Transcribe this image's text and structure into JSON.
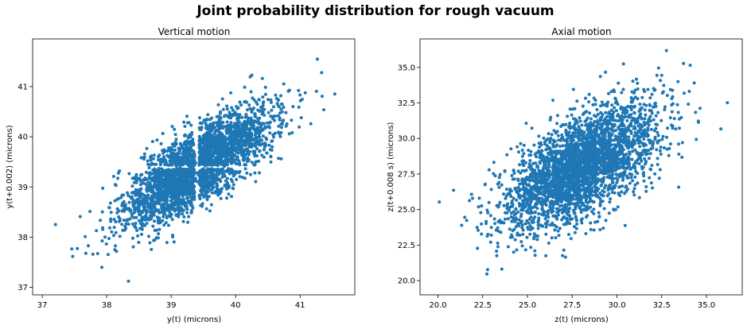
{
  "figure": {
    "suptitle": "Joint probability distribution for rough vacuum"
  },
  "chart_data": [
    {
      "type": "scatter",
      "title": "Vertical motion",
      "xlabel": "y(t) (microns)",
      "ylabel": "y(t+0.002) (microns)",
      "xlim": [
        36.85,
        41.85
      ],
      "ylim": [
        36.85,
        41.95
      ],
      "xticks": [
        37,
        38,
        39,
        40,
        41
      ],
      "yticks": [
        37,
        38,
        39,
        40,
        41
      ],
      "color": "#1f77b4",
      "point_cloud": {
        "approx_points": 3000,
        "center": [
          39.4,
          39.4
        ],
        "spread_along_diagonal": 0.75,
        "spread_across_diagonal": 0.28,
        "gap_near": 39.4,
        "x_range": [
          37.0,
          41.75
        ],
        "y_range": [
          37.0,
          41.75
        ]
      },
      "grid": false
    },
    {
      "type": "scatter",
      "title": "Axial motion",
      "xlabel": "z(t) (microns)",
      "ylabel": "z(t+0.008 s) (microns)",
      "xlim": [
        19.0,
        37.0
      ],
      "ylim": [
        19.0,
        37.0
      ],
      "xticks": [
        20.0,
        22.5,
        25.0,
        27.5,
        30.0,
        32.5,
        35.0
      ],
      "yticks": [
        20.0,
        22.5,
        25.0,
        27.5,
        30.0,
        32.5,
        35.0
      ],
      "color": "#1f77b4",
      "point_cloud": {
        "approx_points": 3000,
        "center": [
          28.0,
          28.0
        ],
        "spread_along_diagonal": 2.8,
        "spread_across_diagonal": 1.35,
        "x_range": [
          19.7,
          36.3
        ],
        "y_range": [
          19.7,
          36.3
        ]
      },
      "grid": false
    }
  ]
}
